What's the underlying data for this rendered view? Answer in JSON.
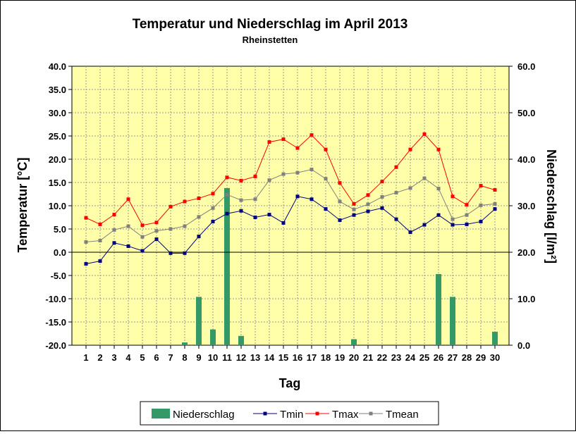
{
  "chart_data": {
    "type": "bar+line",
    "title": "Temperatur und Niederschlag im April 2013",
    "subtitle": "Rheinstetten",
    "xlabel": "Tag",
    "ylabel_left": "Temperatur [°C]",
    "ylabel_right": "Niederschlag [l/m²]",
    "categories": [
      "1",
      "2",
      "3",
      "4",
      "5",
      "6",
      "7",
      "8",
      "9",
      "10",
      "11",
      "12",
      "13",
      "14",
      "15",
      "16",
      "17",
      "18",
      "19",
      "20",
      "21",
      "22",
      "23",
      "24",
      "25",
      "26",
      "27",
      "28",
      "29",
      "30"
    ],
    "ylim_left": [
      -20,
      40
    ],
    "ylim_right": [
      0,
      60
    ],
    "yticks_left": [
      "-20.0",
      "-15.0",
      "-10.0",
      "-5.0",
      "0.0",
      "5.0",
      "10.0",
      "15.0",
      "20.0",
      "25.0",
      "30.0",
      "35.0",
      "40.0"
    ],
    "yticks_right": [
      "0.0",
      "10.0",
      "20.0",
      "30.0",
      "40.0",
      "50.0",
      "60.0"
    ],
    "grid": true,
    "plot_background": "#FFFFAA",
    "legend_position": "bottom",
    "series": [
      {
        "name": "Niederschlag",
        "kind": "bar",
        "axis": "right",
        "color": "#339966",
        "values": [
          0,
          0,
          0,
          0,
          0,
          0,
          0,
          0.6,
          10.4,
          3.4,
          33.8,
          2.0,
          0,
          0,
          0,
          0,
          0,
          0,
          0,
          1.3,
          0,
          0,
          0,
          0,
          0,
          15.3,
          10.4,
          0,
          0,
          2.9
        ]
      },
      {
        "name": "Tmin",
        "kind": "line",
        "axis": "left",
        "color": "#000080",
        "values": [
          -2.5,
          -1.9,
          2.0,
          1.3,
          0.3,
          2.8,
          -0.2,
          -0.2,
          3.4,
          6.6,
          8.3,
          8.9,
          7.5,
          8.1,
          6.3,
          12.0,
          11.4,
          9.3,
          6.9,
          8.0,
          8.8,
          9.5,
          7.1,
          4.3,
          5.9,
          8.0,
          5.9,
          6.0,
          6.6,
          9.3
        ]
      },
      {
        "name": "Tmax",
        "kind": "line",
        "axis": "left",
        "color": "#FF0000",
        "values": [
          7.4,
          6.0,
          8.1,
          11.4,
          5.8,
          6.4,
          9.8,
          10.9,
          11.6,
          12.6,
          16.1,
          15.4,
          16.3,
          23.7,
          24.3,
          22.4,
          25.2,
          22.1,
          14.9,
          10.4,
          12.3,
          15.2,
          18.3,
          22.1,
          25.4,
          22.1,
          12.0,
          10.2,
          14.3,
          13.4
        ]
      },
      {
        "name": "Tmean",
        "kind": "line",
        "axis": "left",
        "color": "#808080",
        "values": [
          2.2,
          2.5,
          4.8,
          5.6,
          3.3,
          4.6,
          5.0,
          5.6,
          7.6,
          9.5,
          12.4,
          11.2,
          11.4,
          15.5,
          16.8,
          17.1,
          17.8,
          15.8,
          10.9,
          9.2,
          10.3,
          11.9,
          12.8,
          13.8,
          15.9,
          13.7,
          7.1,
          8.0,
          10.1,
          10.4
        ]
      }
    ]
  }
}
